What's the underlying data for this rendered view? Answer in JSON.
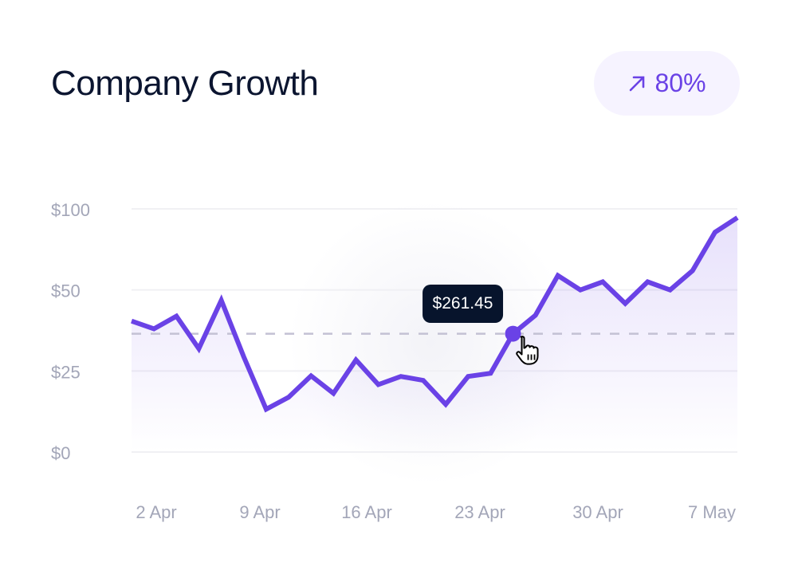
{
  "header": {
    "title": "Company Growth",
    "badge": {
      "icon": "arrow-up-right-icon",
      "value": "80%"
    }
  },
  "colors": {
    "line": "#6a42e6",
    "title": "#0b1530",
    "tooltip_bg": "#07142c",
    "badge_bg": "#f6f3ff",
    "axis_text": "#a3a6b8"
  },
  "chart_data": {
    "type": "area",
    "title": "",
    "xlabel": "",
    "ylabel": "",
    "y_ticks": [
      {
        "value": 0,
        "label": "$0"
      },
      {
        "value": 25,
        "label": "$25"
      },
      {
        "value": 50,
        "label": "$50"
      },
      {
        "value": 100,
        "label": "$100"
      }
    ],
    "x_ticks": [
      "2 Apr",
      "9 Apr",
      "16 Apr",
      "23 Apr",
      "30 Apr",
      "7 May"
    ],
    "values": [
      40.4,
      38.0,
      41.9,
      31.9,
      46.8,
      29.4,
      13.2,
      16.9,
      23.5,
      18.1,
      28.4,
      20.8,
      23.3,
      22.1,
      14.7,
      23.3,
      24.3,
      36.5,
      42.2,
      58.9,
      50,
      55,
      45.8,
      55,
      50,
      61.9,
      85.6,
      94.6
    ],
    "highlight_index": 17,
    "reference_line": 36.5,
    "tooltip": "$261.45",
    "grid": true
  }
}
